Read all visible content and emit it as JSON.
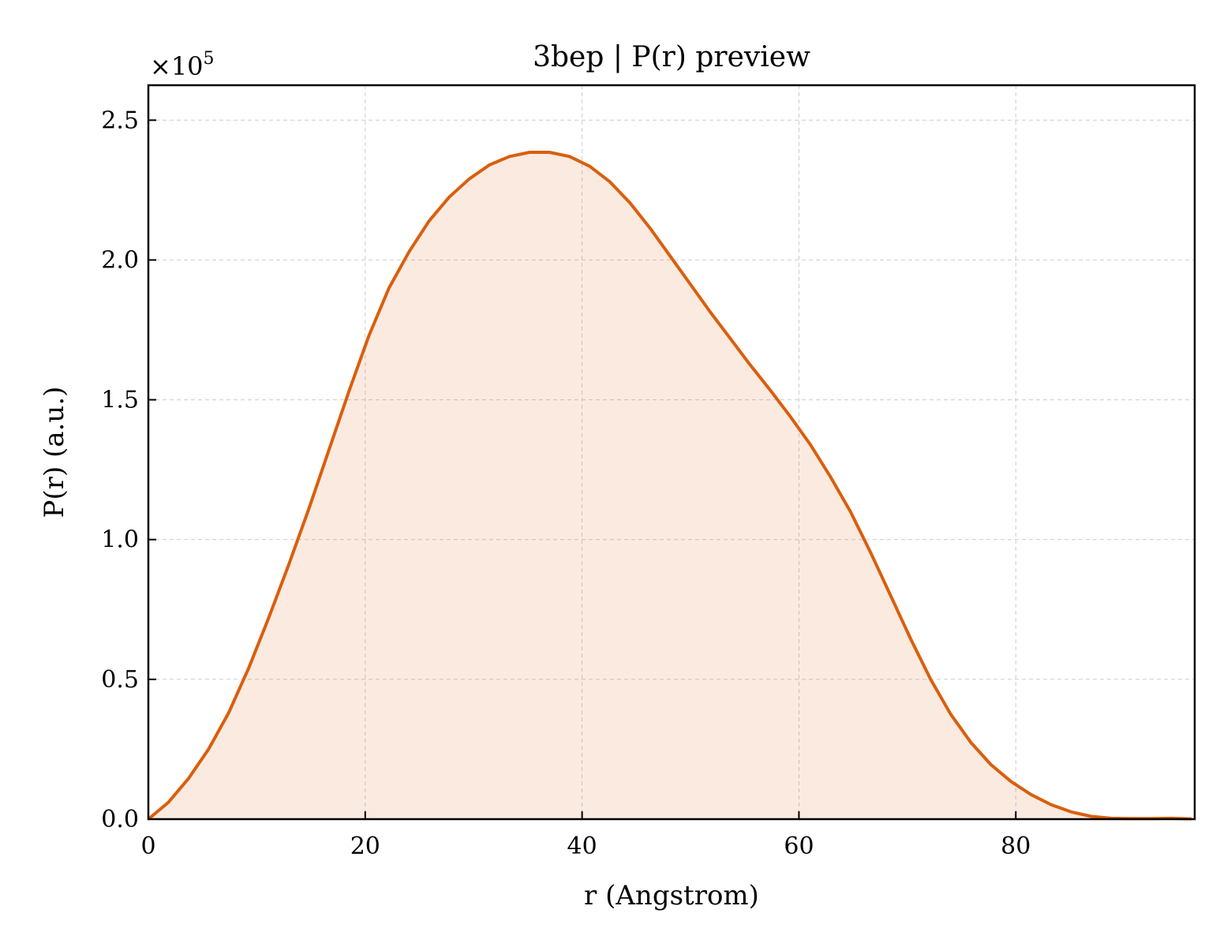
{
  "chart_data": {
    "type": "area",
    "title": "3bep | P(r) preview",
    "xlabel": "r (Angstrom)",
    "ylabel": "P(r) (a.u.)",
    "y_multiplier_label": "×10",
    "y_multiplier_exponent": "5",
    "xlim": [
      0,
      96.5
    ],
    "ylim": [
      0,
      2.625
    ],
    "x_ticks": [
      0,
      20,
      40,
      60,
      80
    ],
    "x_tick_labels": [
      "0",
      "20",
      "40",
      "60",
      "80"
    ],
    "y_ticks": [
      0,
      0.5,
      1.0,
      1.5,
      2.0,
      2.5
    ],
    "y_tick_labels": [
      "0.0",
      "0.5",
      "1.0",
      "1.5",
      "2.0",
      "2.5"
    ],
    "grid": true,
    "colors": {
      "line": "#d95f0e",
      "fill": "#d95f0e"
    },
    "series": [
      {
        "x": [
          0,
          1.85,
          3.7,
          5.55,
          7.4,
          9.25,
          11.1,
          12.95,
          14.8,
          16.65,
          18.5,
          20.35,
          22.2,
          24.05,
          25.9,
          27.75,
          29.6,
          31.45,
          33.3,
          35.15,
          37.0,
          38.85,
          40.7,
          42.55,
          44.4,
          46.25,
          48.1,
          49.95,
          51.8,
          53.65,
          55.5,
          57.35,
          59.2,
          61.05,
          62.9,
          64.75,
          66.6,
          68.45,
          70.3,
          72.15,
          74.0,
          75.85,
          77.7,
          79.55,
          81.4,
          83.25,
          85.1,
          86.95,
          88.8,
          90.65,
          92.5,
          94.35,
          96.2
        ],
        "values": [
          0.0,
          0.06,
          0.145,
          0.25,
          0.38,
          0.54,
          0.72,
          0.91,
          1.11,
          1.32,
          1.53,
          1.73,
          1.9,
          2.03,
          2.14,
          2.225,
          2.29,
          2.34,
          2.37,
          2.385,
          2.385,
          2.37,
          2.335,
          2.28,
          2.205,
          2.115,
          2.015,
          1.915,
          1.815,
          1.72,
          1.625,
          1.535,
          1.44,
          1.34,
          1.225,
          1.1,
          0.955,
          0.8,
          0.645,
          0.5,
          0.375,
          0.275,
          0.195,
          0.135,
          0.088,
          0.052,
          0.026,
          0.01,
          0.003,
          0.002,
          0.002,
          0.003,
          0.001
        ]
      }
    ]
  }
}
